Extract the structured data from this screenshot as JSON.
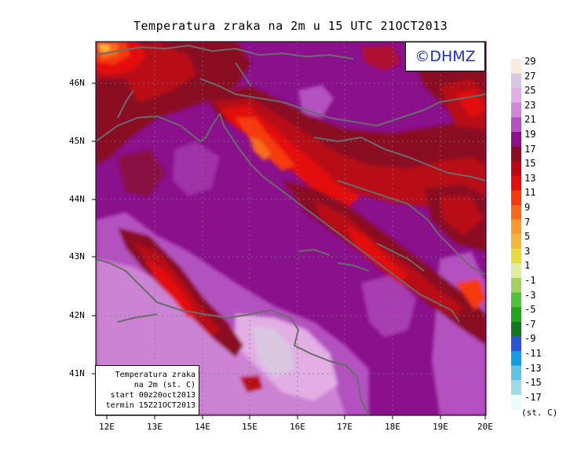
{
  "title": "Temperatura zraka na 2m u 15 UTC 21OCT2013",
  "logo": "©DHMZ",
  "info_box": {
    "line1": "Temperatura zraka",
    "line2": "na 2m (st. C)",
    "line3": "start 00z20oct2013",
    "line4": "termin 15Z21OCT2013"
  },
  "legend": {
    "unit": "(st. C)",
    "labels": [
      "29",
      "27",
      "25",
      "23",
      "21",
      "19",
      "17",
      "15",
      "13",
      "11",
      "9",
      "7",
      "5",
      "3",
      "1",
      "-1",
      "-3",
      "-5",
      "-7",
      "-9",
      "-11",
      "-13",
      "-15",
      "-17"
    ],
    "colors": [
      "#fde9dd",
      "#d9c7e2",
      "#e2aee4",
      "#cf88d6",
      "#b351c0",
      "#8b108c",
      "#8a0d24",
      "#b80a16",
      "#e40e10",
      "#f53a0e",
      "#f86a1a",
      "#fa9a2d",
      "#f4b63a",
      "#e8dc3c",
      "#e0eda3",
      "#a3d35f",
      "#4fc23a",
      "#1fa61b",
      "#11781f",
      "#2a55d9",
      "#0f9ce3",
      "#5ec4e3",
      "#9fdbe7",
      "#e9fbfb"
    ]
  },
  "axes": {
    "lat_labels": [
      "46N",
      "45N",
      "44N",
      "43N",
      "42N",
      "41N"
    ],
    "lon_labels": [
      "12E",
      "13E",
      "14E",
      "15E",
      "16E",
      "17E",
      "18E",
      "19E",
      "20E"
    ]
  }
}
